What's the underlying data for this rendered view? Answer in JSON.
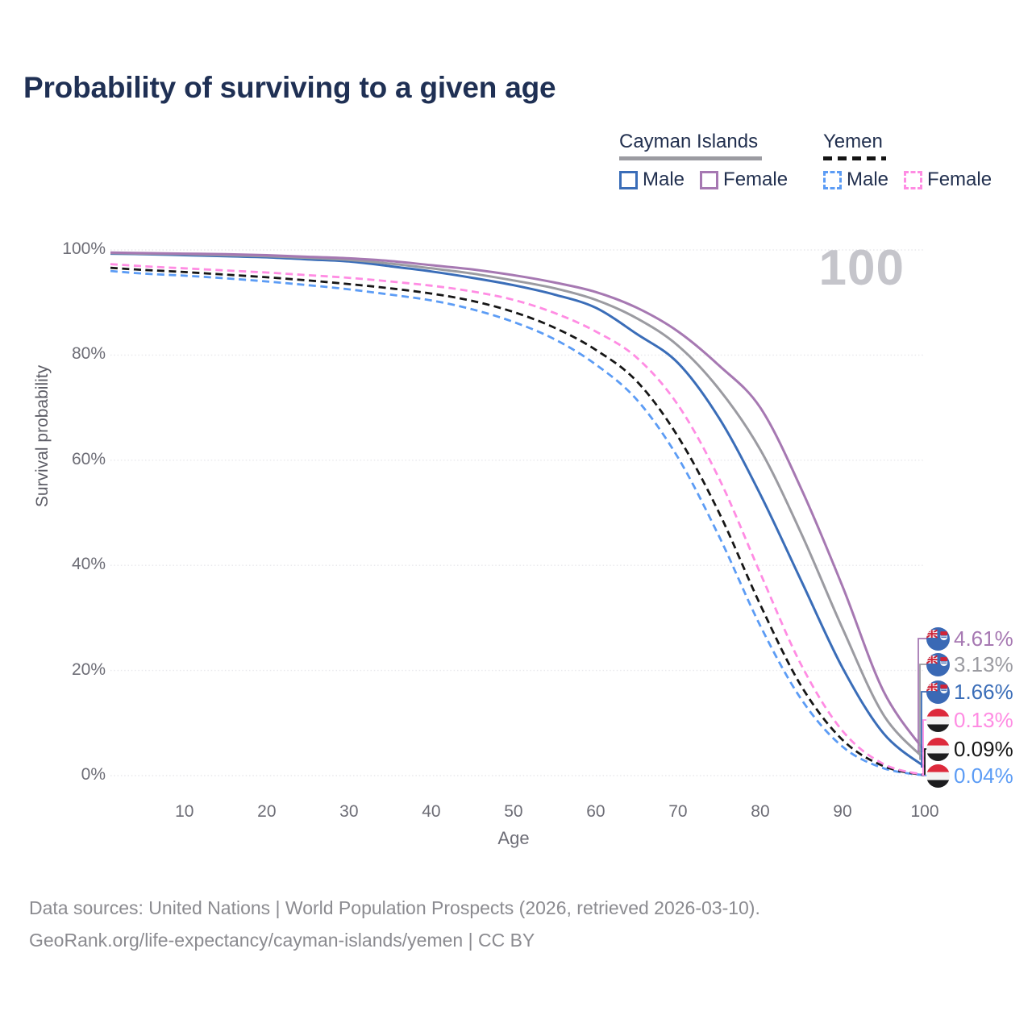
{
  "page": {
    "title": "Probability of surviving to a given age"
  },
  "legend": {
    "groups": [
      {
        "name": "Cayman Islands",
        "line_style": "solid",
        "underline_color": "#9b9ba1",
        "items": [
          {
            "label": "Male",
            "color": "#3a6db8"
          },
          {
            "label": "Female",
            "color": "#a678b2"
          }
        ]
      },
      {
        "name": "Yemen",
        "line_style": "dashed",
        "underline_color": "#141414",
        "items": [
          {
            "label": "Male",
            "color": "#5c9cf5"
          },
          {
            "label": "Female",
            "color": "#ff8ce3"
          }
        ]
      }
    ]
  },
  "watermark": "100",
  "chart_data": {
    "type": "line",
    "title": "Probability of surviving to a given age",
    "xlabel": "Age",
    "ylabel": "Survival probability",
    "xlim": [
      1,
      100
    ],
    "ylim": [
      0,
      100
    ],
    "x_ticks": [
      10,
      20,
      30,
      40,
      50,
      60,
      70,
      80,
      90,
      100
    ],
    "y_ticks": [
      "0%",
      "20%",
      "40%",
      "60%",
      "80%",
      "100%"
    ],
    "grid": "horizontal-dotted",
    "legend_position": "top-right",
    "hover_age_label": "100",
    "series": [
      {
        "name": "Yemen Male",
        "style": "dashed",
        "color": "#5c9cf5",
        "final_value_pct": 0.04,
        "points": [
          [
            1,
            96.0
          ],
          [
            5,
            95.5
          ],
          [
            10,
            95.1
          ],
          [
            15,
            94.6
          ],
          [
            20,
            94.0
          ],
          [
            25,
            93.3
          ],
          [
            30,
            92.5
          ],
          [
            35,
            91.5
          ],
          [
            40,
            90.4
          ],
          [
            45,
            88.7
          ],
          [
            50,
            86.3
          ],
          [
            55,
            83.0
          ],
          [
            60,
            78.2
          ],
          [
            65,
            71.5
          ],
          [
            70,
            60.5
          ],
          [
            75,
            45.5
          ],
          [
            80,
            28.5
          ],
          [
            85,
            14.5
          ],
          [
            90,
            5.5
          ],
          [
            95,
            1.4
          ],
          [
            100,
            0.04
          ]
        ]
      },
      {
        "name": "Yemen Both sexes",
        "style": "dashed",
        "color": "#161616",
        "final_value_pct": 0.09,
        "points": [
          [
            1,
            96.6
          ],
          [
            5,
            96.2
          ],
          [
            10,
            95.8
          ],
          [
            15,
            95.3
          ],
          [
            20,
            94.8
          ],
          [
            25,
            94.2
          ],
          [
            30,
            93.5
          ],
          [
            35,
            92.7
          ],
          [
            40,
            91.7
          ],
          [
            45,
            90.3
          ],
          [
            50,
            88.2
          ],
          [
            55,
            85.2
          ],
          [
            60,
            81.0
          ],
          [
            65,
            75.0
          ],
          [
            70,
            64.5
          ],
          [
            75,
            50.0
          ],
          [
            80,
            32.5
          ],
          [
            85,
            17.0
          ],
          [
            90,
            6.8
          ],
          [
            95,
            1.8
          ],
          [
            100,
            0.09
          ]
        ]
      },
      {
        "name": "Yemen Female",
        "style": "dashed",
        "color": "#ff8ce3",
        "final_value_pct": 0.13,
        "points": [
          [
            1,
            97.3
          ],
          [
            5,
            96.9
          ],
          [
            10,
            96.5
          ],
          [
            15,
            96.1
          ],
          [
            20,
            95.7
          ],
          [
            25,
            95.2
          ],
          [
            30,
            94.7
          ],
          [
            35,
            94.0
          ],
          [
            40,
            93.2
          ],
          [
            45,
            92.1
          ],
          [
            50,
            90.5
          ],
          [
            55,
            88.0
          ],
          [
            60,
            84.5
          ],
          [
            65,
            79.5
          ],
          [
            70,
            70.5
          ],
          [
            75,
            56.5
          ],
          [
            80,
            38.5
          ],
          [
            85,
            21.0
          ],
          [
            90,
            8.5
          ],
          [
            95,
            2.2
          ],
          [
            100,
            0.13
          ]
        ]
      },
      {
        "name": "Cayman Islands Male",
        "style": "solid",
        "color": "#3a6db8",
        "final_value_pct": 1.66,
        "points": [
          [
            1,
            99.3
          ],
          [
            5,
            99.2
          ],
          [
            10,
            99.0
          ],
          [
            15,
            98.8
          ],
          [
            20,
            98.6
          ],
          [
            25,
            98.2
          ],
          [
            30,
            97.8
          ],
          [
            35,
            96.9
          ],
          [
            40,
            95.9
          ],
          [
            45,
            94.7
          ],
          [
            50,
            93.3
          ],
          [
            55,
            91.5
          ],
          [
            60,
            89.0
          ],
          [
            65,
            84.0
          ],
          [
            70,
            78.5
          ],
          [
            75,
            68.0
          ],
          [
            80,
            53.5
          ],
          [
            85,
            37.0
          ],
          [
            90,
            20.5
          ],
          [
            95,
            8.0
          ],
          [
            100,
            1.66
          ]
        ]
      },
      {
        "name": "Cayman Islands Both sexes",
        "style": "solid",
        "color": "#9b9ba1",
        "final_value_pct": 3.13,
        "points": [
          [
            1,
            99.4
          ],
          [
            5,
            99.3
          ],
          [
            10,
            99.2
          ],
          [
            15,
            99.0
          ],
          [
            20,
            98.8
          ],
          [
            25,
            98.5
          ],
          [
            30,
            98.1
          ],
          [
            35,
            97.4
          ],
          [
            40,
            96.5
          ],
          [
            45,
            95.5
          ],
          [
            50,
            94.2
          ],
          [
            55,
            92.7
          ],
          [
            60,
            90.5
          ],
          [
            65,
            87.0
          ],
          [
            70,
            81.8
          ],
          [
            75,
            73.5
          ],
          [
            80,
            62.0
          ],
          [
            85,
            46.0
          ],
          [
            90,
            28.0
          ],
          [
            95,
            11.5
          ],
          [
            100,
            3.13
          ]
        ]
      },
      {
        "name": "Cayman Islands Female",
        "style": "solid",
        "color": "#a678b2",
        "final_value_pct": 4.61,
        "points": [
          [
            1,
            99.5
          ],
          [
            5,
            99.4
          ],
          [
            10,
            99.3
          ],
          [
            15,
            99.2
          ],
          [
            20,
            99.0
          ],
          [
            25,
            98.7
          ],
          [
            30,
            98.4
          ],
          [
            35,
            97.9
          ],
          [
            40,
            97.1
          ],
          [
            45,
            96.3
          ],
          [
            50,
            95.2
          ],
          [
            55,
            93.8
          ],
          [
            60,
            92.0
          ],
          [
            65,
            89.0
          ],
          [
            70,
            84.5
          ],
          [
            75,
            78.0
          ],
          [
            80,
            70.0
          ],
          [
            85,
            54.5
          ],
          [
            90,
            36.0
          ],
          [
            95,
            16.0
          ],
          [
            100,
            4.61
          ]
        ]
      }
    ]
  },
  "endpoints": [
    {
      "country": "Cayman Islands",
      "flag": "cayman-islands",
      "value": "4.61%",
      "pct": 4.61,
      "color": "#a678b2"
    },
    {
      "country": "Cayman Islands",
      "flag": "cayman-islands",
      "value": "3.13%",
      "pct": 3.13,
      "color": "#9b9ba1"
    },
    {
      "country": "Cayman Islands",
      "flag": "cayman-islands",
      "value": "1.66%",
      "pct": 1.66,
      "color": "#3a6db8"
    },
    {
      "country": "Yemen",
      "flag": "yemen",
      "value": "0.13%",
      "pct": 0.13,
      "color": "#ff8ce3"
    },
    {
      "country": "Yemen",
      "flag": "yemen",
      "value": "0.09%",
      "pct": 0.09,
      "color": "#161616"
    },
    {
      "country": "Yemen",
      "flag": "yemen",
      "value": "0.04%",
      "pct": 0.04,
      "color": "#5c9cf5"
    }
  ],
  "footer": {
    "line1": "Data sources: United Nations | World Population Prospects (2026, retrieved 2026-03-10).",
    "line2": "GeoRank.org/life-expectancy/cayman-islands/yemen | CC BY"
  }
}
